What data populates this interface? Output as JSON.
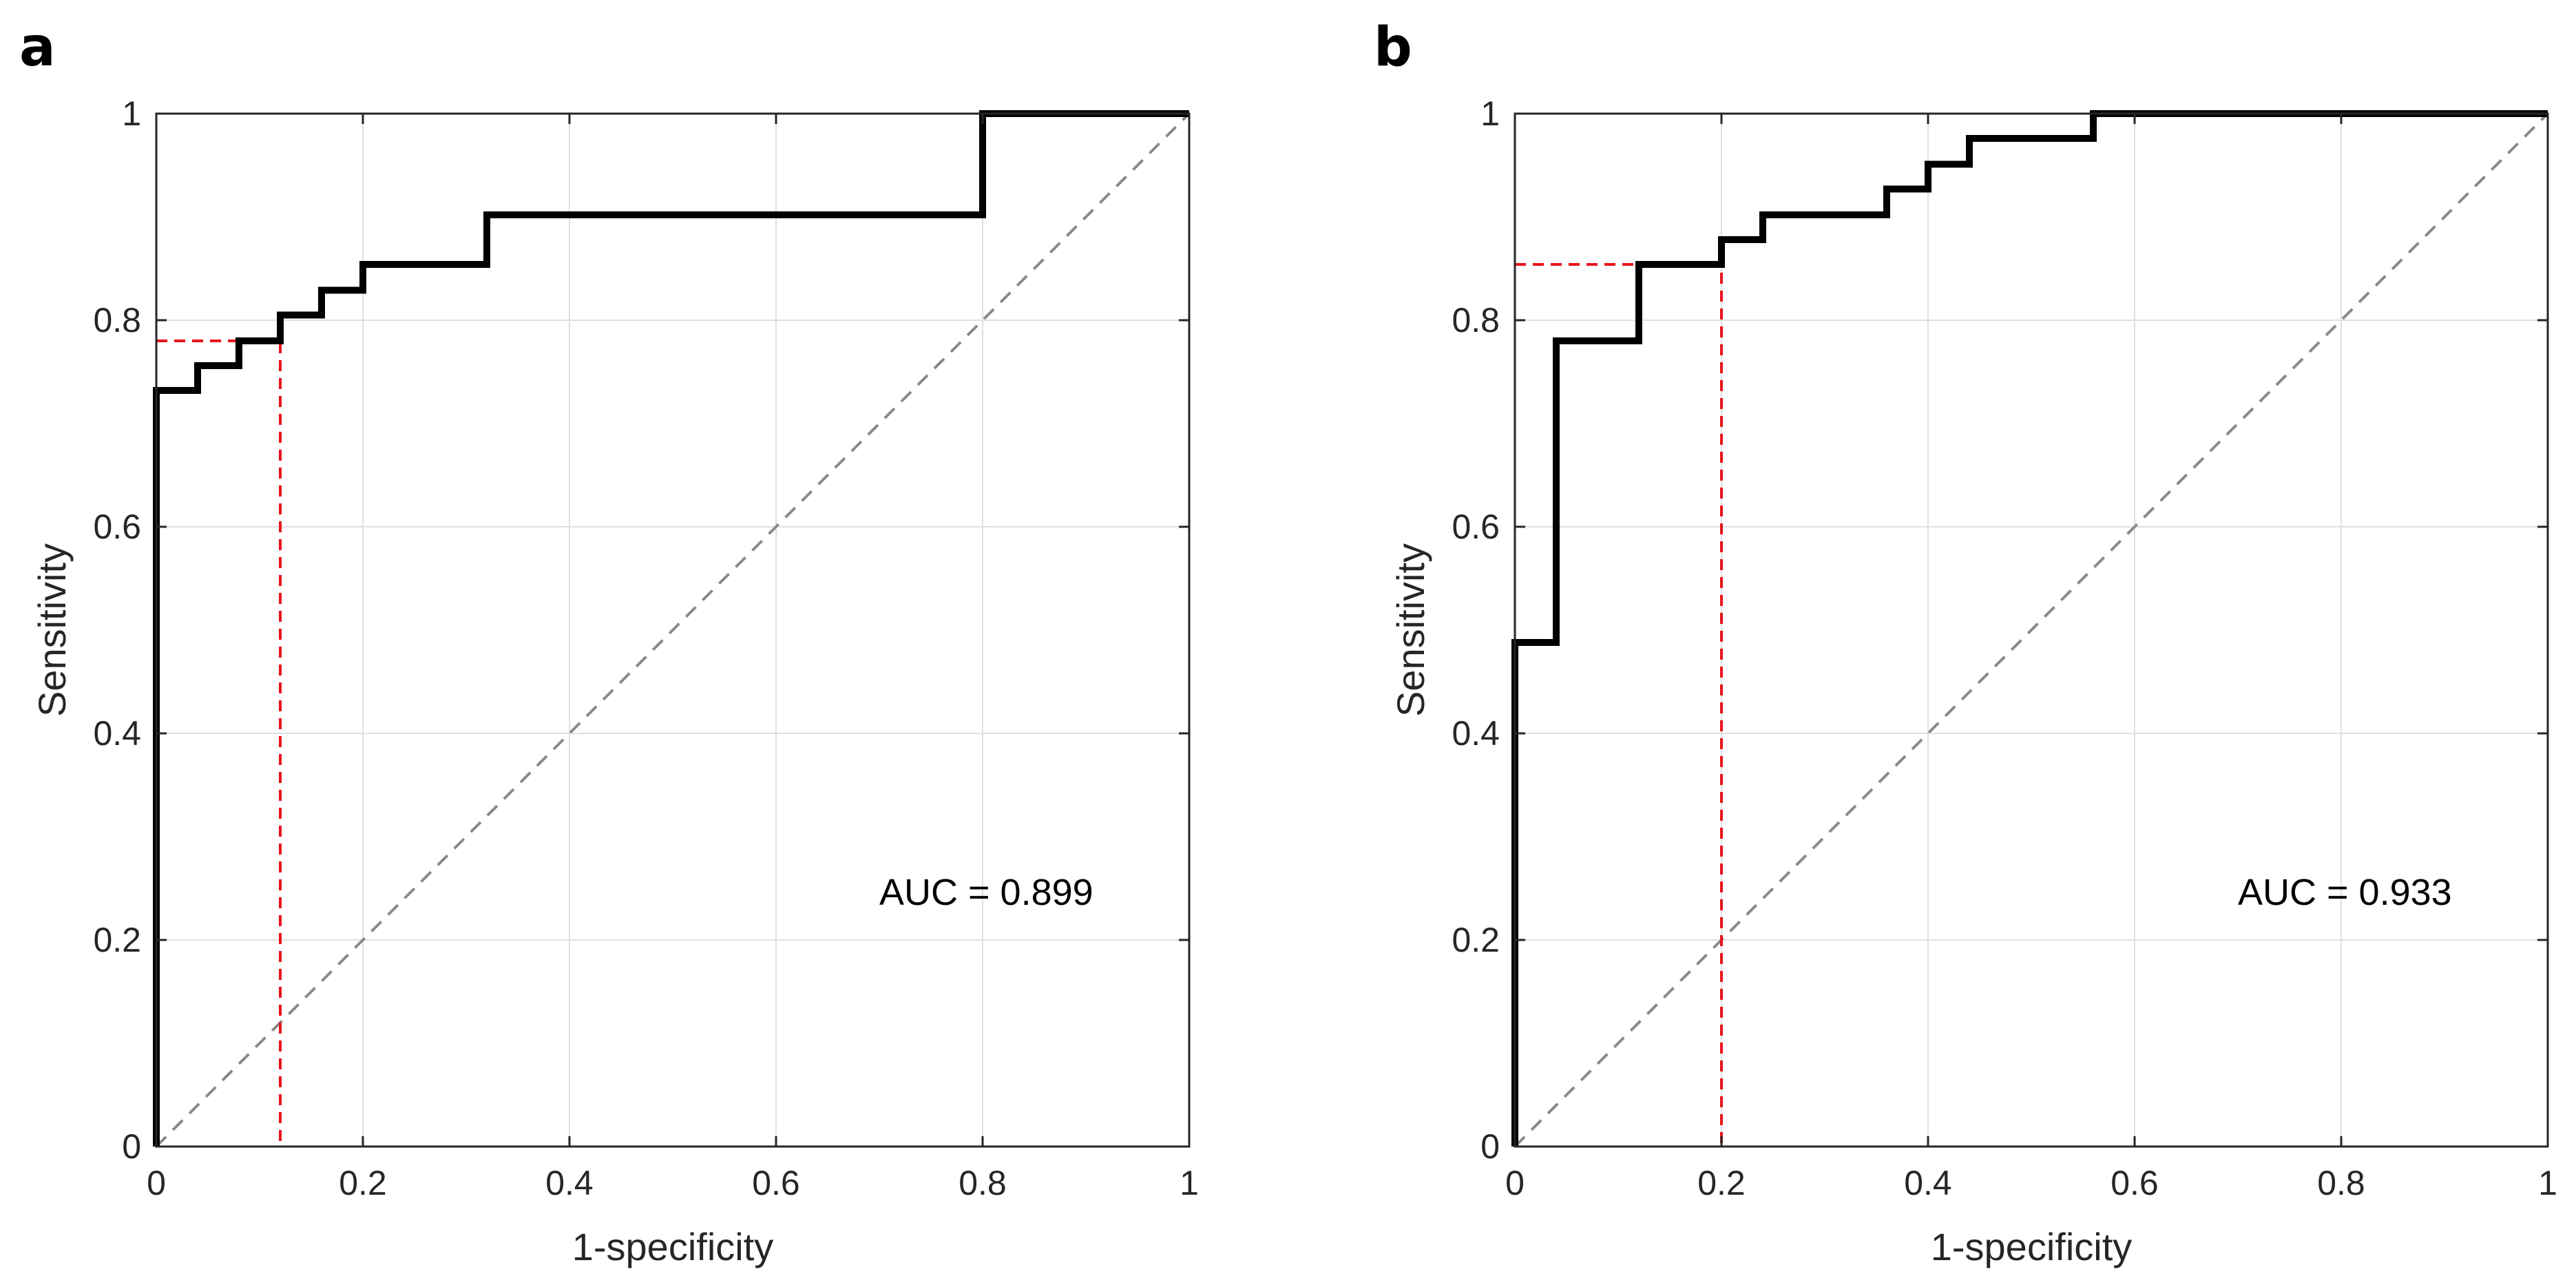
{
  "chart_data": [
    {
      "type": "line",
      "panel_label": "a",
      "xlabel": "1-specificity",
      "ylabel": "Sensitivity",
      "xlim": [
        0,
        1
      ],
      "ylim": [
        0,
        1
      ],
      "xticks": [
        0,
        0.2,
        0.4,
        0.6,
        0.8,
        1
      ],
      "yticks": [
        0,
        0.2,
        0.4,
        0.6,
        0.8,
        1
      ],
      "xtick_labels": [
        "0",
        "0.2",
        "0.4",
        "0.6",
        "0.8",
        "1"
      ],
      "ytick_labels": [
        "0",
        "0.2",
        "0.4",
        "0.6",
        "0.8",
        "1"
      ],
      "grid": true,
      "annotation": "AUC = 0.899",
      "series": [
        {
          "name": "ROC curve",
          "style": "stairs",
          "x": [
            0,
            0,
            0.04,
            0.04,
            0.08,
            0.08,
            0.12,
            0.12,
            0.16,
            0.16,
            0.2,
            0.2,
            0.32,
            0.32,
            0.8,
            0.8,
            1
          ],
          "y": [
            0,
            0.732,
            0.732,
            0.756,
            0.756,
            0.78,
            0.78,
            0.805,
            0.805,
            0.829,
            0.829,
            0.854,
            0.854,
            0.902,
            0.902,
            1,
            1
          ]
        },
        {
          "name": "chance",
          "style": "diagonal",
          "x": [
            0,
            1
          ],
          "y": [
            0,
            1
          ]
        }
      ],
      "optimal_cutoff": {
        "x": 0.12,
        "y": 0.78
      },
      "colors": {
        "roc": "#000000",
        "chance": "#8a8a8a",
        "cutoff": "#e8141c"
      }
    },
    {
      "type": "line",
      "panel_label": "b",
      "xlabel": "1-specificity",
      "ylabel": "Sensitivity",
      "xlim": [
        0,
        1
      ],
      "ylim": [
        0,
        1
      ],
      "xticks": [
        0,
        0.2,
        0.4,
        0.6,
        0.8,
        1
      ],
      "yticks": [
        0,
        0.2,
        0.4,
        0.6,
        0.8,
        1
      ],
      "xtick_labels": [
        "0",
        "0.2",
        "0.4",
        "0.6",
        "0.8",
        "1"
      ],
      "ytick_labels": [
        "0",
        "0.2",
        "0.4",
        "0.6",
        "0.8",
        "1"
      ],
      "grid": true,
      "annotation": "AUC = 0.933",
      "series": [
        {
          "name": "ROC curve",
          "style": "stairs",
          "x": [
            0,
            0,
            0.04,
            0.04,
            0.12,
            0.12,
            0.2,
            0.2,
            0.24,
            0.24,
            0.36,
            0.36,
            0.4,
            0.4,
            0.44,
            0.44,
            0.56,
            0.56,
            1
          ],
          "y": [
            0,
            0.488,
            0.488,
            0.78,
            0.78,
            0.854,
            0.854,
            0.878,
            0.878,
            0.902,
            0.902,
            0.927,
            0.927,
            0.951,
            0.951,
            0.976,
            0.976,
            1,
            1
          ]
        },
        {
          "name": "chance",
          "style": "diagonal",
          "x": [
            0,
            1
          ],
          "y": [
            0,
            1
          ]
        }
      ],
      "optimal_cutoff": {
        "x": 0.2,
        "y": 0.854
      },
      "colors": {
        "roc": "#000000",
        "chance": "#8a8a8a",
        "cutoff": "#e8141c"
      }
    }
  ]
}
